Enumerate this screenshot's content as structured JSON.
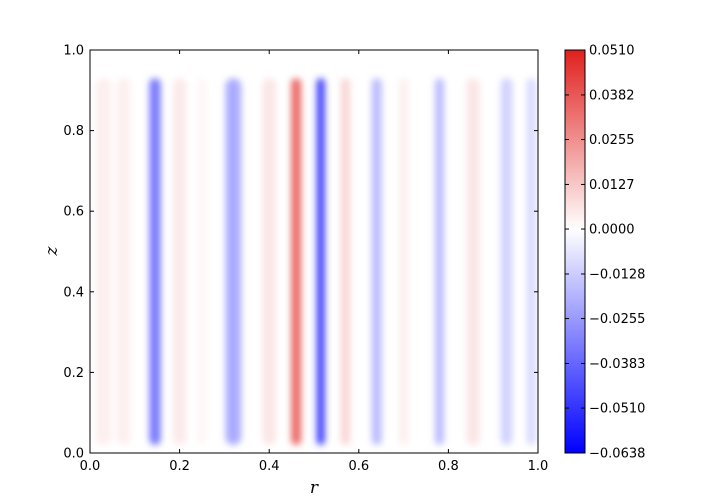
{
  "chart_data": {
    "type": "heatmap",
    "title": "",
    "xlabel": "r",
    "ylabel": "z",
    "xlim": [
      0.0,
      1.0
    ],
    "ylim": [
      0.0,
      1.0
    ],
    "x_ticks": [
      0.0,
      0.2,
      0.4,
      0.6,
      0.8,
      1.0
    ],
    "x_tick_labels": [
      "0.0",
      "0.2",
      "0.4",
      "0.6",
      "0.8",
      "1.0"
    ],
    "y_ticks": [
      0.0,
      0.2,
      0.4,
      0.6,
      0.8,
      1.0
    ],
    "y_tick_labels": [
      "0.0",
      "0.2",
      "0.4",
      "0.6",
      "0.8",
      "1.0"
    ],
    "colormap": "bwr",
    "color_min": -0.0638,
    "color_max": 0.051,
    "colorbar_ticks": [
      0.051,
      0.0382,
      0.0255,
      0.0127,
      0.0,
      -0.0128,
      -0.0255,
      -0.0383,
      -0.051,
      -0.0638
    ],
    "colorbar_tick_labels": [
      "0.0510",
      "0.0382",
      "0.0255",
      "0.0127",
      "0.0000",
      "−0.0128",
      "−0.0255",
      "−0.0383",
      "−0.0510",
      "−0.0638"
    ],
    "bands": [
      {
        "r": 0.03,
        "width": 0.035,
        "value": 0.004
      },
      {
        "r": 0.075,
        "width": 0.03,
        "value": 0.004
      },
      {
        "r": 0.145,
        "width": 0.025,
        "value": -0.035
      },
      {
        "r": 0.2,
        "width": 0.03,
        "value": 0.005
      },
      {
        "r": 0.25,
        "width": 0.02,
        "value": 0.002
      },
      {
        "r": 0.32,
        "width": 0.035,
        "value": -0.022
      },
      {
        "r": 0.4,
        "width": 0.03,
        "value": 0.006
      },
      {
        "r": 0.46,
        "width": 0.022,
        "value": 0.036
      },
      {
        "r": 0.515,
        "width": 0.018,
        "value": -0.05
      },
      {
        "r": 0.57,
        "width": 0.02,
        "value": 0.01
      },
      {
        "r": 0.64,
        "width": 0.022,
        "value": -0.018
      },
      {
        "r": 0.7,
        "width": 0.02,
        "value": 0.004
      },
      {
        "r": 0.78,
        "width": 0.02,
        "value": -0.018
      },
      {
        "r": 0.855,
        "width": 0.03,
        "value": 0.006
      },
      {
        "r": 0.93,
        "width": 0.025,
        "value": -0.012
      },
      {
        "r": 0.985,
        "width": 0.02,
        "value": -0.01
      }
    ]
  }
}
